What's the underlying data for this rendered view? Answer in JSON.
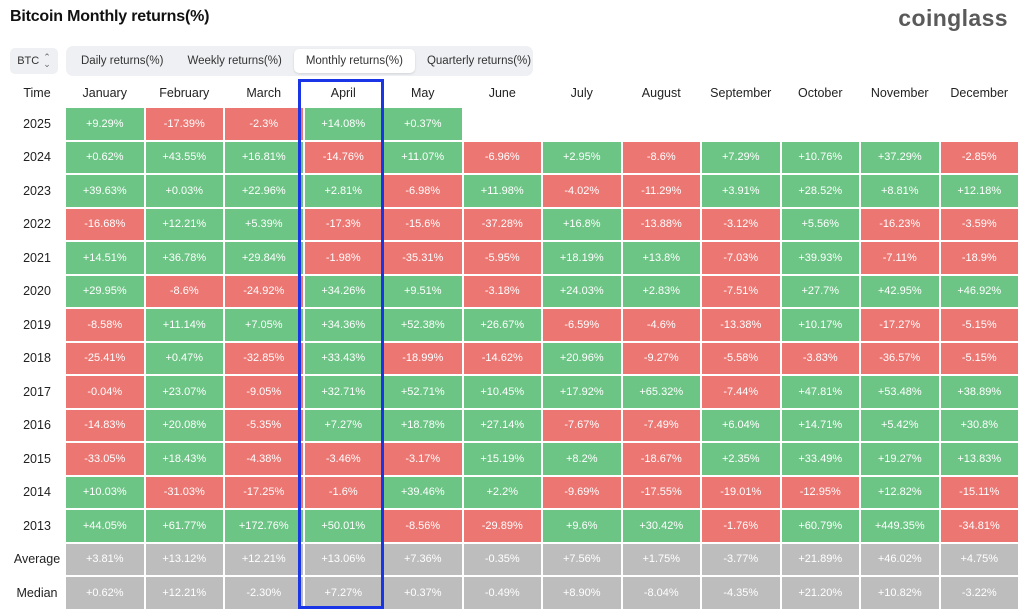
{
  "header": {
    "title": "Bitcoin Monthly returns(%)",
    "brand": "coinglass"
  },
  "coin_select": {
    "value": "BTC",
    "icon": "chevron-up-down-icon"
  },
  "tabs": [
    {
      "label": "Daily returns(%)",
      "active": false
    },
    {
      "label": "Weekly returns(%)",
      "active": false
    },
    {
      "label": "Monthly returns(%)",
      "active": true
    },
    {
      "label": "Quarterly returns(%)",
      "active": false
    }
  ],
  "highlighted_column": "April",
  "colors": {
    "positive": "#6cc585",
    "negative": "#eb7672",
    "stat": "#bdbdbd",
    "highlight": "#1a35e6"
  },
  "table": {
    "time_header": "Time",
    "months": [
      "January",
      "February",
      "March",
      "April",
      "May",
      "June",
      "July",
      "August",
      "September",
      "October",
      "November",
      "December"
    ],
    "rows": [
      {
        "label": "2025",
        "cells": [
          "+9.29%",
          "-17.39%",
          "-2.3%",
          "+14.08%",
          "+0.37%",
          "",
          "",
          "",
          "",
          "",
          "",
          ""
        ]
      },
      {
        "label": "2024",
        "cells": [
          "+0.62%",
          "+43.55%",
          "+16.81%",
          "-14.76%",
          "+11.07%",
          "-6.96%",
          "+2.95%",
          "-8.6%",
          "+7.29%",
          "+10.76%",
          "+37.29%",
          "-2.85%"
        ]
      },
      {
        "label": "2023",
        "cells": [
          "+39.63%",
          "+0.03%",
          "+22.96%",
          "+2.81%",
          "-6.98%",
          "+11.98%",
          "-4.02%",
          "-11.29%",
          "+3.91%",
          "+28.52%",
          "+8.81%",
          "+12.18%"
        ]
      },
      {
        "label": "2022",
        "cells": [
          "-16.68%",
          "+12.21%",
          "+5.39%",
          "-17.3%",
          "-15.6%",
          "-37.28%",
          "+16.8%",
          "-13.88%",
          "-3.12%",
          "+5.56%",
          "-16.23%",
          "-3.59%"
        ]
      },
      {
        "label": "2021",
        "cells": [
          "+14.51%",
          "+36.78%",
          "+29.84%",
          "-1.98%",
          "-35.31%",
          "-5.95%",
          "+18.19%",
          "+13.8%",
          "-7.03%",
          "+39.93%",
          "-7.11%",
          "-18.9%"
        ]
      },
      {
        "label": "2020",
        "cells": [
          "+29.95%",
          "-8.6%",
          "-24.92%",
          "+34.26%",
          "+9.51%",
          "-3.18%",
          "+24.03%",
          "+2.83%",
          "-7.51%",
          "+27.7%",
          "+42.95%",
          "+46.92%"
        ]
      },
      {
        "label": "2019",
        "cells": [
          "-8.58%",
          "+11.14%",
          "+7.05%",
          "+34.36%",
          "+52.38%",
          "+26.67%",
          "-6.59%",
          "-4.6%",
          "-13.38%",
          "+10.17%",
          "-17.27%",
          "-5.15%"
        ]
      },
      {
        "label": "2018",
        "cells": [
          "-25.41%",
          "+0.47%",
          "-32.85%",
          "+33.43%",
          "-18.99%",
          "-14.62%",
          "+20.96%",
          "-9.27%",
          "-5.58%",
          "-3.83%",
          "-36.57%",
          "-5.15%"
        ]
      },
      {
        "label": "2017",
        "cells": [
          "-0.04%",
          "+23.07%",
          "-9.05%",
          "+32.71%",
          "+52.71%",
          "+10.45%",
          "+17.92%",
          "+65.32%",
          "-7.44%",
          "+47.81%",
          "+53.48%",
          "+38.89%"
        ]
      },
      {
        "label": "2016",
        "cells": [
          "-14.83%",
          "+20.08%",
          "-5.35%",
          "+7.27%",
          "+18.78%",
          "+27.14%",
          "-7.67%",
          "-7.49%",
          "+6.04%",
          "+14.71%",
          "+5.42%",
          "+30.8%"
        ]
      },
      {
        "label": "2015",
        "cells": [
          "-33.05%",
          "+18.43%",
          "-4.38%",
          "-3.46%",
          "-3.17%",
          "+15.19%",
          "+8.2%",
          "-18.67%",
          "+2.35%",
          "+33.49%",
          "+19.27%",
          "+13.83%"
        ]
      },
      {
        "label": "2014",
        "cells": [
          "+10.03%",
          "-31.03%",
          "-17.25%",
          "-1.6%",
          "+39.46%",
          "+2.2%",
          "-9.69%",
          "-17.55%",
          "-19.01%",
          "-12.95%",
          "+12.82%",
          "-15.11%"
        ]
      },
      {
        "label": "2013",
        "cells": [
          "+44.05%",
          "+61.77%",
          "+172.76%",
          "+50.01%",
          "-8.56%",
          "-29.89%",
          "+9.6%",
          "+30.42%",
          "-1.76%",
          "+60.79%",
          "+449.35%",
          "-34.81%"
        ]
      }
    ],
    "stats": [
      {
        "label": "Average",
        "cells": [
          "+3.81%",
          "+13.12%",
          "+12.21%",
          "+13.06%",
          "+7.36%",
          "-0.35%",
          "+7.56%",
          "+1.75%",
          "-3.77%",
          "+21.89%",
          "+46.02%",
          "+4.75%"
        ]
      },
      {
        "label": "Median",
        "cells": [
          "+0.62%",
          "+12.21%",
          "-2.30%",
          "+7.27%",
          "+0.37%",
          "-0.49%",
          "+8.90%",
          "-8.04%",
          "-4.35%",
          "+21.20%",
          "+10.82%",
          "-3.22%"
        ]
      }
    ]
  }
}
